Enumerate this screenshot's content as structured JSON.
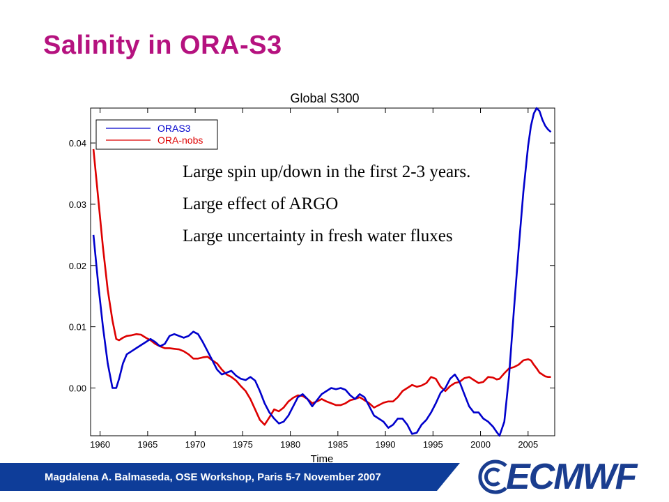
{
  "slide": {
    "title": "Salinity in ORA-S3",
    "notes": [
      "Large spin up/down in the first 2-3 years.",
      "Large effect of ARGO",
      "Large uncertainty in fresh water fluxes"
    ],
    "footer": "Magdalena A. Balmaseda, OSE Workshop, Paris 5-7 November 2007",
    "logo": "ECMWF"
  },
  "colors": {
    "title": "#b5127f",
    "footer_bar": "#0e3d99",
    "logo": "#1a3d8f",
    "oras3": "#0000cc",
    "ora_nobs": "#dd0000"
  },
  "chart_data": {
    "type": "line",
    "title": "Global S300",
    "xlabel": "Time",
    "ylabel": "",
    "xlim": [
      1959.0,
      2007.8
    ],
    "ylim": [
      -0.0078,
      0.0457
    ],
    "xticks": [
      1960,
      1965,
      1970,
      1975,
      1980,
      1985,
      1990,
      1995,
      2000,
      2005
    ],
    "yticks": [
      0.0,
      0.01,
      0.02,
      0.03,
      0.04
    ],
    "ytick_labels": [
      "0.00",
      "0.01",
      "0.02",
      "0.03",
      "0.04"
    ],
    "legend_position": "top-left",
    "series": [
      {
        "name": "ORAS3",
        "color": "#0000cc",
        "x": [
          1959.3,
          1959.8,
          1960.3,
          1960.8,
          1961.3,
          1961.7,
          1962.0,
          1962.4,
          1962.8,
          1963.3,
          1963.8,
          1964.3,
          1964.8,
          1965.3,
          1965.8,
          1966.3,
          1966.8,
          1967.3,
          1967.8,
          1968.3,
          1968.8,
          1969.3,
          1969.8,
          1970.3,
          1970.8,
          1971.3,
          1971.8,
          1972.3,
          1972.8,
          1973.3,
          1973.8,
          1974.3,
          1974.8,
          1975.3,
          1975.8,
          1976.3,
          1976.8,
          1977.3,
          1977.8,
          1978.3,
          1978.8,
          1979.3,
          1979.8,
          1980.3,
          1980.8,
          1981.3,
          1981.8,
          1982.3,
          1982.8,
          1983.3,
          1983.8,
          1984.3,
          1984.8,
          1985.3,
          1985.8,
          1986.3,
          1986.8,
          1987.3,
          1987.8,
          1988.3,
          1988.8,
          1989.3,
          1989.8,
          1990.3,
          1990.8,
          1991.3,
          1991.8,
          1992.3,
          1992.8,
          1993.3,
          1993.8,
          1994.3,
          1994.8,
          1995.3,
          1995.8,
          1996.3,
          1996.8,
          1997.3,
          1997.8,
          1998.3,
          1998.8,
          1999.3,
          1999.8,
          2000.3,
          2000.8,
          2001.3,
          2001.7,
          2002.0,
          2002.5,
          2003.0,
          2003.5,
          2004.0,
          2004.5,
          2005.0,
          2005.3,
          2005.6,
          2005.9,
          2006.2,
          2006.5,
          2006.8,
          2007.1,
          2007.4
        ],
        "y": [
          0.025,
          0.017,
          0.01,
          0.004,
          0.0,
          0.0,
          0.0015,
          0.004,
          0.0055,
          0.006,
          0.0065,
          0.007,
          0.0075,
          0.008,
          0.0075,
          0.0068,
          0.0072,
          0.0085,
          0.0088,
          0.0085,
          0.0082,
          0.0085,
          0.0092,
          0.0088,
          0.0075,
          0.006,
          0.0045,
          0.003,
          0.0022,
          0.0025,
          0.0028,
          0.002,
          0.0015,
          0.0013,
          0.0018,
          0.0012,
          -0.0005,
          -0.0025,
          -0.004,
          -0.005,
          -0.0058,
          -0.0055,
          -0.0045,
          -0.003,
          -0.0015,
          -0.001,
          -0.0018,
          -0.003,
          -0.002,
          -0.001,
          -0.0005,
          0.0,
          -0.0002,
          0.0,
          -0.0003,
          -0.0012,
          -0.0018,
          -0.001,
          -0.0015,
          -0.003,
          -0.0045,
          -0.005,
          -0.0055,
          -0.0065,
          -0.006,
          -0.005,
          -0.005,
          -0.006,
          -0.0075,
          -0.0073,
          -0.006,
          -0.0052,
          -0.004,
          -0.0025,
          -0.0008,
          0.0,
          0.0015,
          0.0022,
          0.001,
          -0.001,
          -0.003,
          -0.004,
          -0.004,
          -0.005,
          -0.0055,
          -0.0063,
          -0.0072,
          -0.0078,
          -0.0055,
          0.002,
          0.0125,
          0.0225,
          0.032,
          0.0395,
          0.0428,
          0.0448,
          0.0457,
          0.0452,
          0.0438,
          0.0428,
          0.0422,
          0.0418
        ]
      },
      {
        "name": "ORA-nobs",
        "color": "#dd0000",
        "x": [
          1959.3,
          1959.8,
          1960.3,
          1960.8,
          1961.3,
          1961.7,
          1962.0,
          1962.4,
          1962.8,
          1963.3,
          1963.8,
          1964.3,
          1964.8,
          1965.3,
          1965.8,
          1966.3,
          1966.8,
          1967.3,
          1967.8,
          1968.3,
          1968.8,
          1969.3,
          1969.8,
          1970.3,
          1970.8,
          1971.3,
          1971.8,
          1972.3,
          1972.8,
          1973.3,
          1973.8,
          1974.3,
          1974.8,
          1975.3,
          1975.8,
          1976.3,
          1976.8,
          1977.3,
          1977.8,
          1978.3,
          1978.8,
          1979.3,
          1979.8,
          1980.3,
          1980.8,
          1981.3,
          1981.8,
          1982.3,
          1982.8,
          1983.3,
          1983.8,
          1984.3,
          1984.8,
          1985.3,
          1985.8,
          1986.3,
          1986.8,
          1987.3,
          1987.8,
          1988.3,
          1988.8,
          1989.3,
          1989.8,
          1990.3,
          1990.8,
          1991.3,
          1991.8,
          1992.3,
          1992.8,
          1993.3,
          1993.8,
          1994.3,
          1994.8,
          1995.3,
          1995.8,
          1996.3,
          1996.8,
          1997.3,
          1997.8,
          1998.3,
          1998.8,
          1999.3,
          1999.8,
          2000.3,
          2000.8,
          2001.3,
          2001.7,
          2002.0,
          2002.5,
          2003.0,
          2003.5,
          2004.0,
          2004.5,
          2005.0,
          2005.3,
          2005.6,
          2005.9,
          2006.2,
          2006.5,
          2006.8,
          2007.1,
          2007.4
        ],
        "y": [
          0.039,
          0.031,
          0.023,
          0.016,
          0.011,
          0.008,
          0.0078,
          0.0082,
          0.0085,
          0.0086,
          0.0088,
          0.0087,
          0.0082,
          0.0078,
          0.0072,
          0.0068,
          0.0065,
          0.0065,
          0.0064,
          0.0063,
          0.006,
          0.0055,
          0.0048,
          0.0048,
          0.005,
          0.0051,
          0.0045,
          0.004,
          0.003,
          0.0022,
          0.0018,
          0.0012,
          0.0003,
          -0.0005,
          -0.0018,
          -0.0035,
          -0.0052,
          -0.006,
          -0.0048,
          -0.0035,
          -0.0038,
          -0.0032,
          -0.0022,
          -0.0016,
          -0.0012,
          -0.0013,
          -0.0018,
          -0.0025,
          -0.0022,
          -0.0018,
          -0.0022,
          -0.0025,
          -0.0028,
          -0.0028,
          -0.0025,
          -0.002,
          -0.0018,
          -0.0015,
          -0.002,
          -0.0025,
          -0.0032,
          -0.0028,
          -0.0024,
          -0.0022,
          -0.0022,
          -0.0015,
          -0.0005,
          0.0,
          0.0005,
          0.0002,
          0.0004,
          0.0008,
          0.0018,
          0.0015,
          0.0002,
          -0.0005,
          0.0003,
          0.0008,
          0.001,
          0.0016,
          0.0018,
          0.0013,
          0.0008,
          0.001,
          0.0018,
          0.0017,
          0.0014,
          0.0015,
          0.0024,
          0.0032,
          0.0034,
          0.0038,
          0.0045,
          0.0047,
          0.0045,
          0.0038,
          0.0032,
          0.0025,
          0.0022,
          0.0019,
          0.0018,
          0.0018
        ]
      }
    ]
  }
}
